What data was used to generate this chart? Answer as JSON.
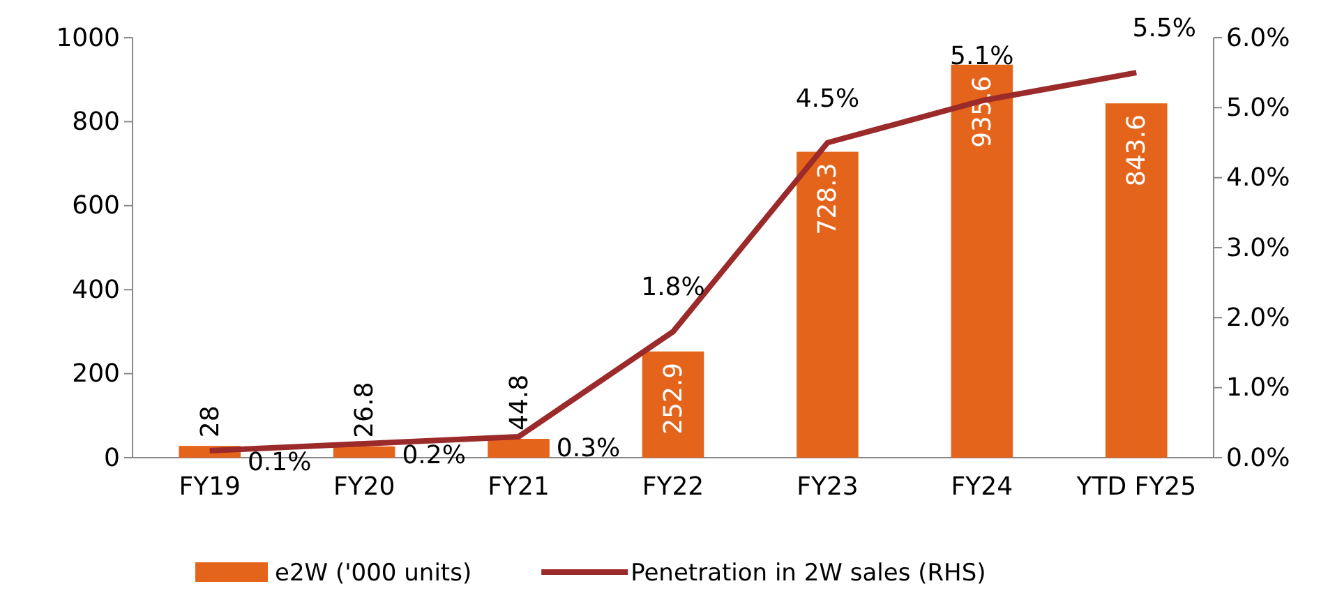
{
  "chart_data": {
    "type": "bar",
    "categories": [
      "FY19",
      "FY20",
      "FY21",
      "FY22",
      "FY23",
      "FY24",
      "YTD FY25"
    ],
    "series": [
      {
        "name": "e2W ('000 units)",
        "color": "#e5641b",
        "values": [
          28,
          26.8,
          44.8,
          252.9,
          728.3,
          935.6,
          843.6
        ],
        "value_labels": [
          "28",
          "26.8",
          "44.8",
          "252.9",
          "728.3",
          "935.6",
          "843.6"
        ]
      },
      {
        "name": "Penetration in 2W sales (RHS)",
        "type": "line",
        "axis": "y2",
        "color": "#9b2a2a",
        "values": [
          0.1,
          0.2,
          0.3,
          1.8,
          4.5,
          5.1,
          5.5
        ],
        "value_labels": [
          "0.1%",
          "0.2%",
          "0.3%",
          "1.8%",
          "4.5%",
          "5.1%",
          "5.5%"
        ]
      }
    ],
    "ylim": [
      0,
      1000
    ],
    "yticks": [
      0,
      200,
      400,
      600,
      800,
      1000
    ],
    "y2lim": [
      0,
      6
    ],
    "y2ticks": [
      {
        "value": 0,
        "label": "0.0%"
      },
      {
        "value": 1,
        "label": "1.0%"
      },
      {
        "value": 2,
        "label": "2.0%"
      },
      {
        "value": 3,
        "label": "3.0%"
      },
      {
        "value": 4,
        "label": "4.0%"
      },
      {
        "value": 5,
        "label": "5.0%"
      },
      {
        "value": 6,
        "label": "6.0%"
      }
    ],
    "grid": false,
    "legend": "bottom",
    "marker": "none",
    "line_style": "solid"
  }
}
